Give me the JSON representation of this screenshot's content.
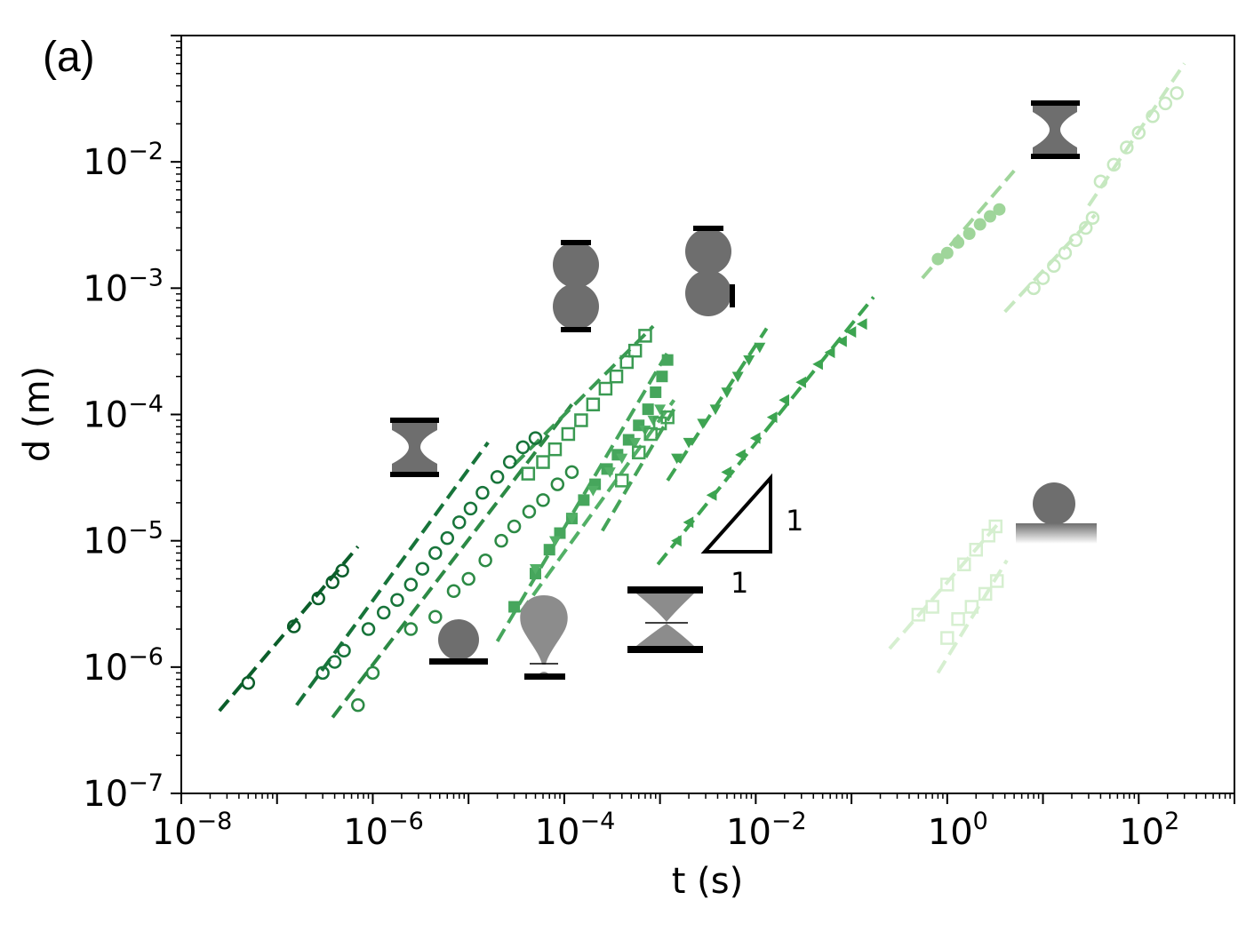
{
  "panel_label": "(a)",
  "chart_data": {
    "type": "scatter",
    "xlabel": "t (s)",
    "ylabel": "d (m)",
    "xscale": "log",
    "yscale": "log",
    "xlim": [
      1e-08,
      1000
    ],
    "ylim": [
      1e-07,
      0.1
    ],
    "xticks": [
      1e-08,
      1e-06,
      0.0001,
      0.01,
      1,
      100
    ],
    "xtick_labels": [
      {
        "base": "10",
        "exp": "−8"
      },
      {
        "base": "10",
        "exp": "−6"
      },
      {
        "base": "10",
        "exp": "−4"
      },
      {
        "base": "10",
        "exp": "−2"
      },
      {
        "base": "10",
        "exp": "0"
      },
      {
        "base": "10",
        "exp": "2"
      }
    ],
    "yticks": [
      1e-07,
      1e-06,
      1e-05,
      0.0001,
      0.001,
      0.01
    ],
    "ytick_labels": [
      {
        "base": "10",
        "exp": "−7"
      },
      {
        "base": "10",
        "exp": "−6"
      },
      {
        "base": "10",
        "exp": "−5"
      },
      {
        "base": "10",
        "exp": "−4"
      },
      {
        "base": "10",
        "exp": "−3"
      },
      {
        "base": "10",
        "exp": "−2"
      }
    ],
    "grid": false,
    "slope_triangle": {
      "rise_label": "1",
      "run_label": "1"
    },
    "series": [
      {
        "color": "#0b5e2a",
        "marker": "circle-open",
        "line_dash": "16,8",
        "fit": [
          [
            2.5e-08,
            4.5e-07
          ],
          [
            7e-07,
            9e-06
          ]
        ],
        "points": [
          [
            5e-08,
            7.5e-07
          ],
          [
            1.5e-07,
            2.1e-06
          ],
          [
            2.7e-07,
            3.5e-06
          ],
          [
            3.8e-07,
            4.7e-06
          ],
          [
            4.8e-07,
            5.8e-06
          ]
        ]
      },
      {
        "color": "#17743a",
        "marker": "circle-open",
        "line_dash": "16,8",
        "fit": [
          [
            1.6e-07,
            5e-07
          ],
          [
            1.6e-05,
            6e-05
          ]
        ],
        "points": [
          [
            3e-07,
            9e-07
          ],
          [
            4e-07,
            1.1e-06
          ],
          [
            5e-07,
            1.35e-06
          ],
          [
            9e-07,
            2e-06
          ],
          [
            1.3e-06,
            2.7e-06
          ],
          [
            1.8e-06,
            3.4e-06
          ],
          [
            2.5e-06,
            4.5e-06
          ],
          [
            3.3e-06,
            6e-06
          ],
          [
            4.5e-06,
            8e-06
          ],
          [
            6e-06,
            1.05e-05
          ],
          [
            8e-06,
            1.4e-05
          ],
          [
            1.05e-05,
            1.8e-05
          ],
          [
            1.4e-05,
            2.4e-05
          ],
          [
            2e-05,
            3.2e-05
          ],
          [
            2.7e-05,
            4.2e-05
          ],
          [
            3.7e-05,
            5.5e-05
          ],
          [
            5e-05,
            6.5e-05
          ]
        ]
      },
      {
        "color": "#2c8a45",
        "marker": "circle-open",
        "line_dash": "16,8",
        "fit": [
          [
            3.8e-07,
            4e-07
          ],
          [
            0.00012,
            0.00012
          ]
        ],
        "points": [
          [
            7e-07,
            5e-07
          ],
          [
            1e-06,
            9e-07
          ],
          [
            2.5e-06,
            2e-06
          ],
          [
            4.5e-06,
            2.5e-06
          ],
          [
            7e-06,
            4e-06
          ],
          [
            1e-05,
            5e-06
          ],
          [
            1.5e-05,
            7e-06
          ],
          [
            2.2e-05,
            1e-05
          ],
          [
            3e-05,
            1.3e-05
          ],
          [
            4.3e-05,
            1.7e-05
          ],
          [
            6e-05,
            2.1e-05
          ],
          [
            8.5e-05,
            2.8e-05
          ],
          [
            0.00012,
            3.5e-05
          ]
        ]
      },
      {
        "color": "#3a9a52",
        "marker": "square-open",
        "line_dash": "16,8",
        "fit": [
          [
            3e-05,
            4e-05
          ],
          [
            0.00085,
            0.0005
          ]
        ],
        "points": [
          [
            4.2e-05,
            3.4e-05
          ],
          [
            6e-05,
            4.2e-05
          ],
          [
            8e-05,
            5.3e-05
          ],
          [
            0.00011,
            7e-05
          ],
          [
            0.00015,
            9e-05
          ],
          [
            0.0002,
            0.00012
          ],
          [
            0.00027,
            0.00016
          ],
          [
            0.00035,
            0.0002
          ],
          [
            0.00045,
            0.00026
          ],
          [
            0.00055,
            0.00032
          ],
          [
            0.0007,
            0.00042
          ]
        ]
      },
      {
        "color": "#46a65c",
        "marker": "square-filled",
        "line_dash": "16,8",
        "fit": [
          [
            2e-05,
            1.6e-06
          ],
          [
            0.0012,
            0.00031
          ]
        ],
        "points": [
          [
            3e-05,
            3e-06
          ],
          [
            5e-05,
            5.5e-06
          ],
          [
            7e-05,
            8.5e-06
          ],
          [
            9e-05,
            1.15e-05
          ],
          [
            0.00012,
            1.5e-05
          ],
          [
            0.00016,
            2.1e-05
          ],
          [
            0.00021,
            2.8e-05
          ],
          [
            0.00028,
            3.7e-05
          ],
          [
            0.00036,
            4.8e-05
          ],
          [
            0.00047,
            6.3e-05
          ],
          [
            0.0006,
            8.2e-05
          ],
          [
            0.00075,
            0.00011
          ],
          [
            0.0009,
            0.00015
          ],
          [
            0.00105,
            0.0002
          ],
          [
            0.0012,
            0.00027
          ]
        ]
      },
      {
        "color": "#52b066",
        "marker": "triangle-down",
        "line_dash": "16,8",
        "fit": [
          [
            3.5e-05,
            2.7e-06
          ],
          [
            0.0014,
            0.00013
          ]
        ],
        "points": [
          [
            5e-05,
            6e-06
          ],
          [
            8e-05,
            1e-05
          ],
          [
            0.00012,
            1.5e-05
          ],
          [
            0.0002,
            2.5e-05
          ],
          [
            0.0003,
            3.5e-05
          ],
          [
            0.0004,
            4.5e-05
          ],
          [
            0.00055,
            6e-05
          ],
          [
            0.0007,
            7.5e-05
          ],
          [
            0.00085,
            9e-05
          ],
          [
            0.001,
            0.00011
          ]
        ]
      },
      {
        "color": "#44a458",
        "marker": "square-open",
        "line_dash": "16,8",
        "fit": [
          [
            0.00025,
            1.2e-05
          ],
          [
            0.0014,
            0.00011
          ]
        ],
        "points": [
          [
            0.0004,
            3e-05
          ],
          [
            0.0006,
            5e-05
          ],
          [
            0.0008,
            7e-05
          ],
          [
            0.001,
            8.5e-05
          ],
          [
            0.0012,
            9.5e-05
          ]
        ]
      },
      {
        "color": "#3ea452",
        "marker": "triangle-down",
        "line_dash": "16,8",
        "fit": [
          [
            0.0012,
            3e-05
          ],
          [
            0.013,
            0.00048
          ]
        ],
        "points": [
          [
            0.0015,
            4.5e-05
          ],
          [
            0.002,
            6e-05
          ],
          [
            0.0028,
            8.5e-05
          ],
          [
            0.0038,
            0.00011
          ],
          [
            0.005,
            0.00015
          ],
          [
            0.0065,
            0.0002
          ],
          [
            0.0085,
            0.00027
          ],
          [
            0.011,
            0.00034
          ]
        ]
      },
      {
        "color": "#3ca450",
        "marker": "triangle-left",
        "line_dash": "16,8",
        "fit": [
          [
            0.00095,
            6.5e-06
          ],
          [
            0.17,
            0.00085
          ]
        ],
        "points": [
          [
            0.0015,
            1e-05
          ],
          [
            0.002,
            1.4e-05
          ],
          [
            0.0035,
            2.3e-05
          ],
          [
            0.005,
            3.5e-05
          ],
          [
            0.007,
            4.8e-05
          ],
          [
            0.01,
            6.5e-05
          ],
          [
            0.015,
            9.5e-05
          ],
          [
            0.02,
            0.00013
          ],
          [
            0.03,
            0.00018
          ],
          [
            0.045,
            0.00025
          ],
          [
            0.06,
            0.00031
          ],
          [
            0.08,
            0.00038
          ],
          [
            0.1,
            0.00045
          ],
          [
            0.13,
            0.00052
          ]
        ]
      },
      {
        "color": "#9fd59a",
        "marker": "circle-filled",
        "line_dash": "16,8",
        "fit": [
          [
            0.55,
            0.0012
          ],
          [
            5,
            0.0085
          ]
        ],
        "points": [
          [
            0.8,
            0.0017
          ],
          [
            1,
            0.0019
          ],
          [
            1.3,
            0.0023
          ],
          [
            1.7,
            0.0027
          ],
          [
            2.2,
            0.0032
          ],
          [
            2.8,
            0.0037
          ],
          [
            3.5,
            0.0042
          ]
        ]
      },
      {
        "color": "#c6e8c0",
        "marker": "circle-open",
        "line_dash": "16,8",
        "fit": [
          [
            4,
            0.00065
          ],
          [
            35,
            0.0038
          ]
        ],
        "points": [
          [
            8,
            0.001
          ],
          [
            10,
            0.0012
          ],
          [
            13,
            0.0015
          ],
          [
            17,
            0.0019
          ],
          [
            22,
            0.0024
          ],
          [
            28,
            0.003
          ],
          [
            33,
            0.0036
          ]
        ]
      },
      {
        "color": "#c6e8c0",
        "marker": "circle-open",
        "line_dash": "16,8",
        "fit": [
          [
            30,
            0.0045
          ],
          [
            300,
            0.06
          ]
        ],
        "points": [
          [
            40,
            0.007
          ],
          [
            55,
            0.0095
          ],
          [
            75,
            0.013
          ],
          [
            100,
            0.017
          ],
          [
            140,
            0.023
          ],
          [
            190,
            0.029
          ],
          [
            250,
            0.035
          ]
        ]
      },
      {
        "color": "#d6efd0",
        "marker": "square-open",
        "line_dash": "16,8",
        "fit": [
          [
            0.25,
            1.4e-06
          ],
          [
            3.5,
            1.4e-05
          ]
        ],
        "points": [
          [
            0.5,
            2.6e-06
          ],
          [
            0.7,
            3e-06
          ],
          [
            1,
            4.5e-06
          ],
          [
            1.5,
            6.5e-06
          ],
          [
            2,
            8.5e-06
          ],
          [
            2.7,
            1.1e-05
          ],
          [
            3.2,
            1.3e-05
          ]
        ]
      },
      {
        "color": "#d6efd0",
        "marker": "square-open",
        "line_dash": "16,8",
        "fit": [
          [
            0.8,
            9e-07
          ],
          [
            4.2,
            7e-06
          ]
        ],
        "points": [
          [
            1,
            1.7e-06
          ],
          [
            1.3,
            2.4e-06
          ],
          [
            1.8,
            3e-06
          ],
          [
            2.5,
            3.8e-06
          ],
          [
            3.3,
            4.8e-06
          ]
        ]
      }
    ]
  },
  "icons": [
    {
      "name": "hourglass-icon",
      "kind": "hourglass",
      "color": "#6e6e6e"
    },
    {
      "name": "two-spheres-icon",
      "kind": "two-spheres",
      "color": "#6e6e6e"
    },
    {
      "name": "two-spheres-offset-icon",
      "kind": "two-spheres-offset",
      "color": "#6e6e6e"
    },
    {
      "name": "hourglass-large-icon",
      "kind": "hourglass",
      "color": "#6e6e6e"
    },
    {
      "name": "sphere-on-plate-icon",
      "kind": "sphere-on-plate",
      "color": "#6e6e6e"
    },
    {
      "name": "drop-on-plate-icon",
      "kind": "drop-on-plate",
      "color": "#8c8c8c"
    },
    {
      "name": "pendant-drop-icon",
      "kind": "pendant-drop",
      "color": "#8c8c8c"
    },
    {
      "name": "thin-neck-hourglass-icon",
      "kind": "thin-neck",
      "color": "#8c8c8c"
    },
    {
      "name": "sphere-on-gradient-plate-icon",
      "kind": "sphere-gradient",
      "color": "#6e6e6e"
    }
  ]
}
